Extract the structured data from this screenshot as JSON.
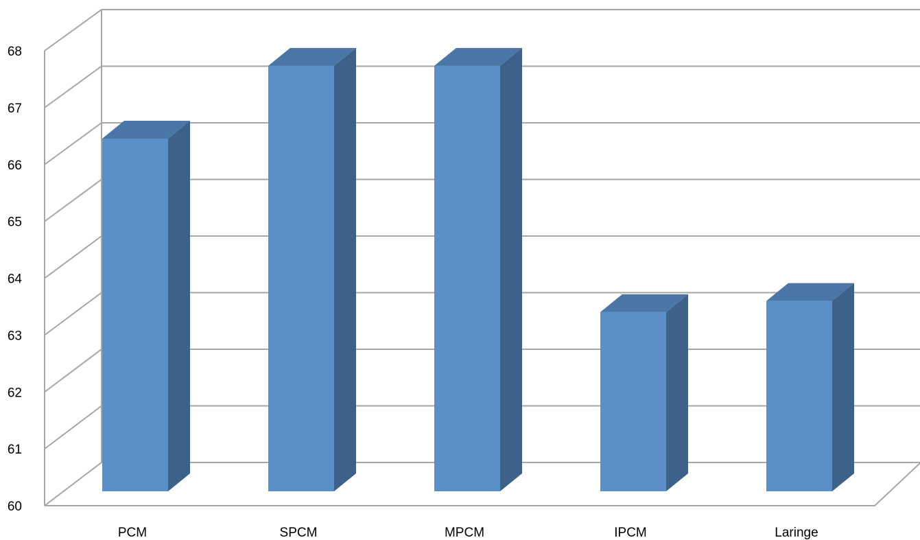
{
  "chart_data": {
    "type": "bar",
    "style": "3d-clustered-column",
    "categories": [
      "PCM",
      "SPCM",
      "MPCM",
      "IPCM",
      "Laringe"
    ],
    "series": [
      {
        "values": [
          66.3,
          67.6,
          67.6,
          63.2,
          63.4
        ]
      }
    ],
    "ylim": [
      60,
      68
    ],
    "yticks": [
      "60",
      "61",
      "62",
      "63",
      "64",
      "65",
      "66",
      "67",
      "68"
    ],
    "title": "",
    "xlabel": "",
    "ylabel": "",
    "grid": true,
    "legend": "none",
    "colors": {
      "bar_front": "#5b8fc7",
      "bar_top": "#4a76a8",
      "bar_side": "#3d6189",
      "grid": "#a6a6a6"
    }
  }
}
